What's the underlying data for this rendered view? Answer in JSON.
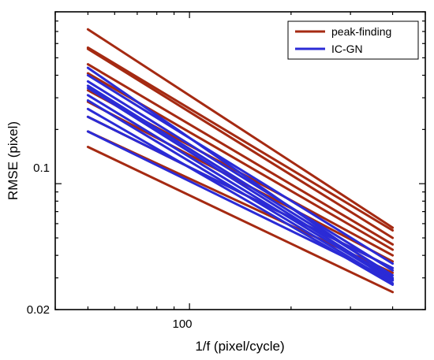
{
  "chart_data": {
    "type": "line",
    "title": "",
    "xlabel": "1/f (pixel/cycle)",
    "ylabel": "RMSE (pixel)",
    "xscale": "log",
    "yscale": "log",
    "xlim": [
      40,
      500
    ],
    "ylim": [
      0.02,
      0.9
    ],
    "x_ticks": [
      100
    ],
    "y_ticks": [
      0.02,
      0.1
    ],
    "x": [
      50,
      400
    ],
    "grid": false,
    "legend_position": "top-right",
    "legend": [
      {
        "name": "peak-finding",
        "color": "#a52a12"
      },
      {
        "name": "IC-GN",
        "color": "#2b2bd6"
      }
    ],
    "series": [
      {
        "group": "peak-finding",
        "values": [
          0.72,
          0.057
        ]
      },
      {
        "group": "peak-finding",
        "values": [
          0.57,
          0.055
        ]
      },
      {
        "group": "peak-finding",
        "values": [
          0.56,
          0.05
        ]
      },
      {
        "group": "peak-finding",
        "values": [
          0.46,
          0.046
        ]
      },
      {
        "group": "peak-finding",
        "values": [
          0.41,
          0.043
        ]
      },
      {
        "group": "peak-finding",
        "values": [
          0.33,
          0.04
        ]
      },
      {
        "group": "peak-finding",
        "values": [
          0.285,
          0.037
        ]
      },
      {
        "group": "peak-finding",
        "values": [
          0.235,
          0.034
        ]
      },
      {
        "group": "peak-finding",
        "values": [
          0.195,
          0.032
        ]
      },
      {
        "group": "peak-finding",
        "values": [
          0.16,
          0.025
        ]
      },
      {
        "group": "IC-GN",
        "values": [
          0.44,
          0.03
        ]
      },
      {
        "group": "IC-GN",
        "values": [
          0.4,
          0.036
        ]
      },
      {
        "group": "IC-GN",
        "values": [
          0.37,
          0.033
        ]
      },
      {
        "group": "IC-GN",
        "values": [
          0.35,
          0.031
        ]
      },
      {
        "group": "IC-GN",
        "values": [
          0.34,
          0.0295
        ]
      },
      {
        "group": "IC-GN",
        "values": [
          0.31,
          0.029
        ]
      },
      {
        "group": "IC-GN",
        "values": [
          0.29,
          0.028
        ]
      },
      {
        "group": "IC-GN",
        "values": [
          0.26,
          0.0275
        ]
      },
      {
        "group": "IC-GN",
        "values": [
          0.235,
          0.034
        ]
      },
      {
        "group": "IC-GN",
        "values": [
          0.195,
          0.029
        ]
      }
    ]
  }
}
